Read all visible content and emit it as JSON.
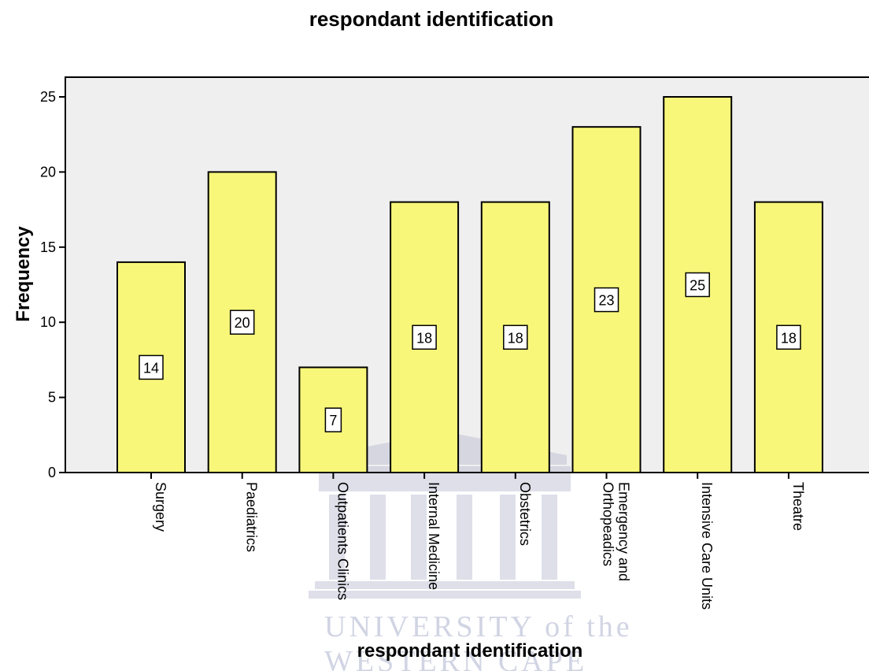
{
  "chart_data": {
    "type": "bar",
    "title": "respondant identification",
    "xlabel": "respondant identification",
    "ylabel": "Frequency",
    "categories": [
      [
        "Surgery"
      ],
      [
        "Paediatrics"
      ],
      [
        "Outpatients Clinics"
      ],
      [
        "Internal Medicine"
      ],
      [
        "Obstetrics"
      ],
      [
        "Emergency and",
        "Orthopeadics"
      ],
      [
        "Intensive Care Units"
      ],
      [
        "Theatre"
      ]
    ],
    "values": [
      14,
      20,
      7,
      18,
      18,
      23,
      25,
      18
    ],
    "data_labels": [
      "14",
      "20",
      "7",
      "18",
      "18",
      "23",
      "25",
      "18"
    ],
    "ylim": [
      0,
      26
    ],
    "yticks": [
      0,
      5,
      10,
      15,
      20,
      25
    ],
    "grid": false,
    "legend": "none",
    "colors": {
      "bar_fill": "#f8f77a",
      "bar_stroke": "#000000",
      "plot_background": "#efefef"
    }
  },
  "watermark": {
    "line1": "UNIVERSITY of the",
    "line2": "WESTERN CAPE",
    "icon": "university-building-icon"
  }
}
